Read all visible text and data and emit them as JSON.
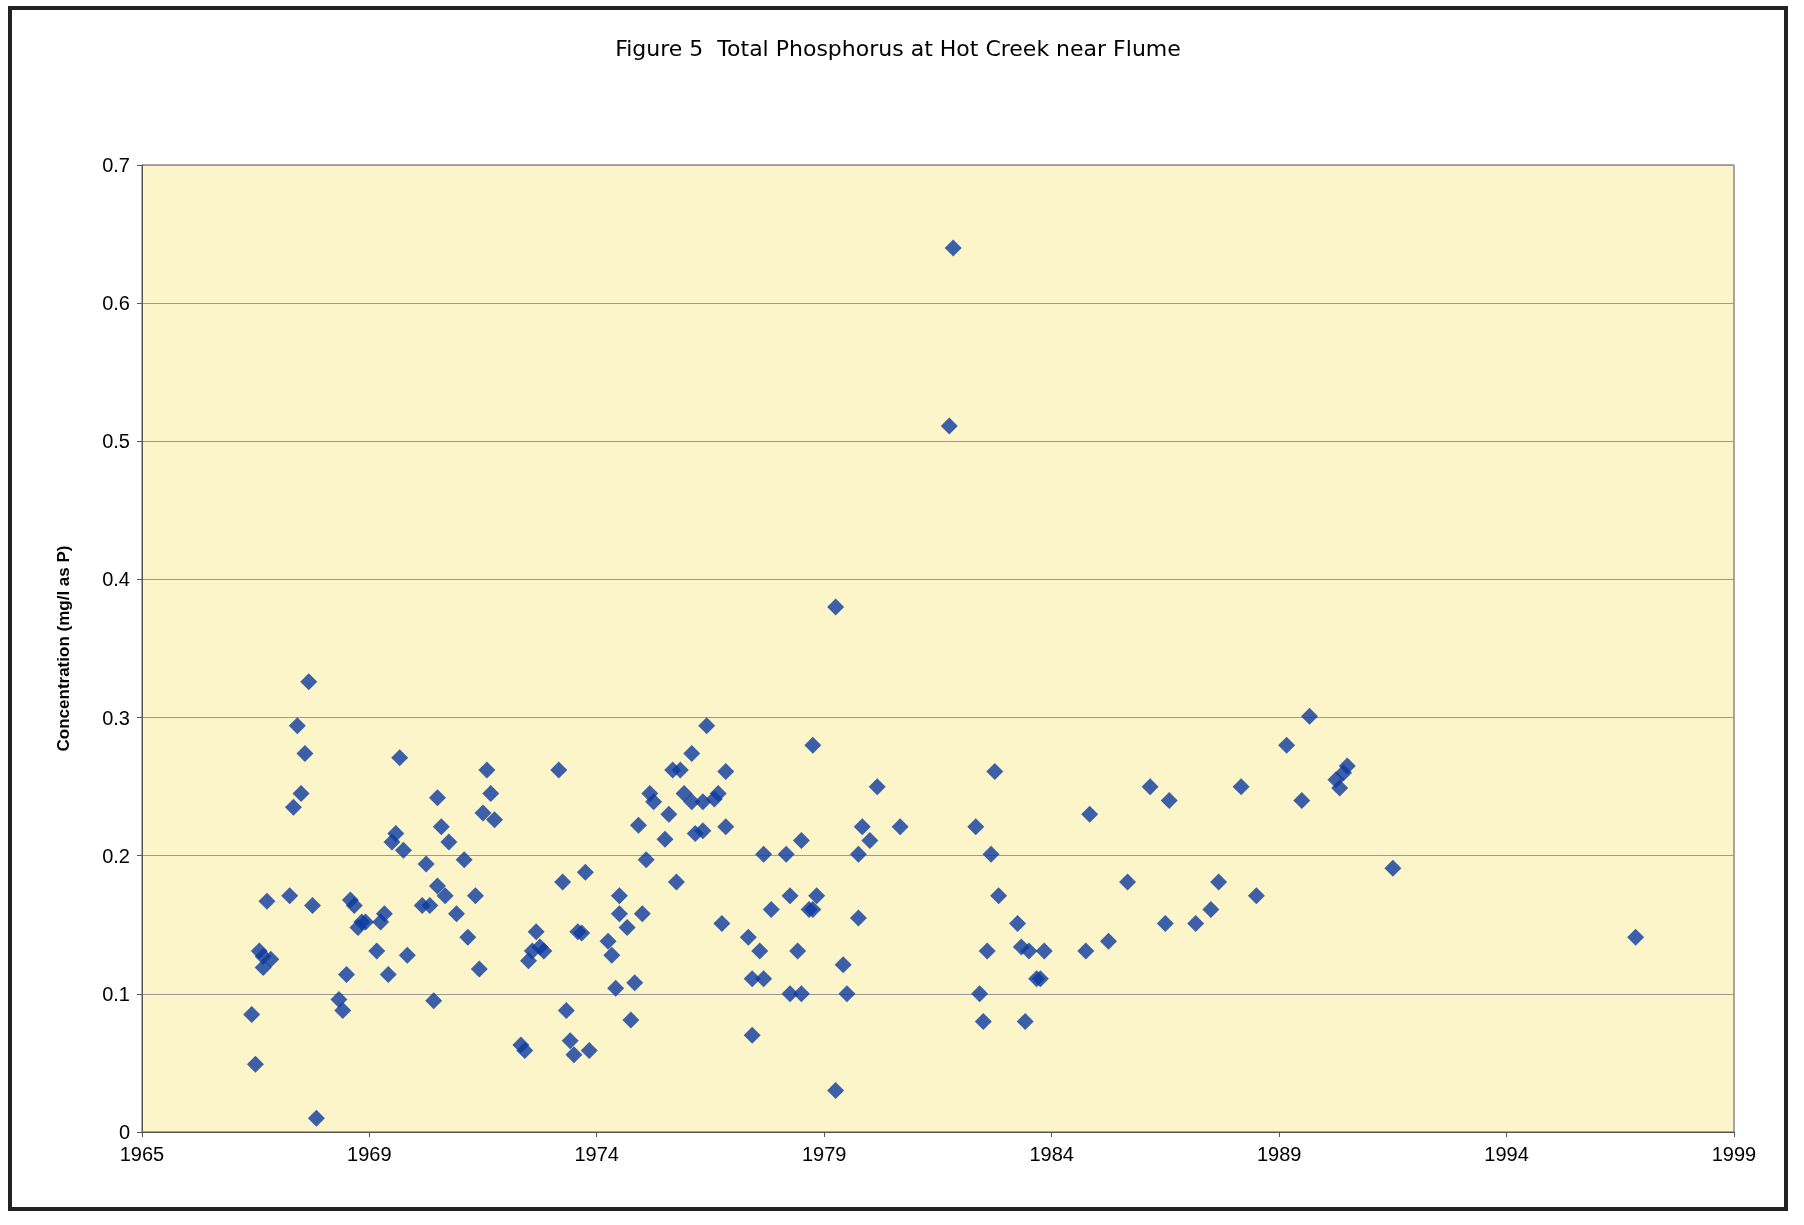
{
  "chart_data": {
    "type": "scatter",
    "title": "Figure 5  Total Phosphorus at Hot Creek near Flume",
    "ylabel": "Concentration (mg/l as P)",
    "x": [
      "1967-06",
      "1967-07",
      "1967-08",
      "1967-09",
      "1967-09",
      "1967-11",
      "1967-10",
      "1968-04",
      "1968-05",
      "1968-06",
      "1968-07",
      "1968-08",
      "1968-09",
      "1968-10",
      "1968-11",
      "1969-05",
      "1969-06",
      "1969-07",
      "1969-08",
      "1969-09",
      "1969-10",
      "1969-11",
      "1969-12",
      "1970-03",
      "1970-04",
      "1970-05",
      "1970-06",
      "1970-07",
      "1970-08",
      "1970-09",
      "1970-10",
      "1970-11",
      "1971-03",
      "1971-04",
      "1971-05",
      "1971-06",
      "1971-07",
      "1971-07",
      "1971-08",
      "1971-09",
      "1971-10",
      "1971-12",
      "1972-02",
      "1972-03",
      "1972-05",
      "1972-06",
      "1972-07",
      "1972-08",
      "1972-09",
      "1972-10",
      "1973-05",
      "1973-06",
      "1973-07",
      "1973-08",
      "1973-09",
      "1973-10",
      "1973-11",
      "1974-03",
      "1974-04",
      "1974-05",
      "1974-06",
      "1974-07",
      "1974-08",
      "1974-09",
      "1974-10",
      "1974-11",
      "1975-04",
      "1975-05",
      "1975-06",
      "1975-07",
      "1975-07",
      "1975-09",
      "1975-10",
      "1975-11",
      "1975-12",
      "1976-01",
      "1976-02",
      "1976-03",
      "1976-04",
      "1976-07",
      "1976-08",
      "1976-09",
      "1976-10",
      "1976-11",
      "1976-12",
      "1977-02",
      "1977-02",
      "1977-03",
      "1977-05",
      "1977-05",
      "1977-06",
      "1977-08",
      "1977-09",
      "1977-10",
      "1977-11",
      "1977-11",
      "1978-05",
      "1978-06",
      "1978-06",
      "1978-08",
      "1978-09",
      "1978-09",
      "1978-11",
      "1979-03",
      "1979-04",
      "1979-04",
      "1979-06",
      "1979-07",
      "1979-07",
      "1979-09",
      "1979-10",
      "1979-10",
      "1979-11",
      "1980-04",
      "1980-04",
      "1980-06",
      "1980-07",
      "1980-10",
      "1980-10",
      "1980-11",
      "1981-01",
      "1981-03",
      "1981-09",
      "1982-10",
      "1982-11",
      "1983-05",
      "1983-06",
      "1983-07",
      "1983-08",
      "1983-09",
      "1983-10",
      "1983-11",
      "1984-04",
      "1984-05",
      "1984-06",
      "1984-07",
      "1984-09",
      "1984-10",
      "1984-11",
      "1985-10",
      "1985-11",
      "1986-04",
      "1986-09",
      "1987-03",
      "1987-07",
      "1987-08",
      "1988-03",
      "1988-07",
      "1988-09",
      "1989-03",
      "1989-07",
      "1990-03",
      "1990-07",
      "1990-09",
      "1991-04",
      "1991-05",
      "1991-06",
      "1991-07",
      "1992-07",
      "1997-11"
    ],
    "series": [
      {
        "color": "#0b3aa0",
        "values": [
          0.085,
          0.049,
          0.131,
          0.119,
          0.127,
          0.125,
          0.167,
          0.171,
          0.235,
          0.294,
          0.245,
          0.274,
          0.326,
          0.164,
          0.01,
          0.096,
          0.088,
          0.114,
          0.168,
          0.164,
          0.148,
          0.152,
          0.152,
          0.131,
          0.152,
          0.158,
          0.114,
          0.21,
          0.216,
          0.271,
          0.204,
          0.128,
          0.164,
          0.194,
          0.164,
          0.095,
          0.178,
          0.242,
          0.221,
          0.171,
          0.21,
          0.158,
          0.197,
          0.141,
          0.171,
          0.118,
          0.231,
          0.262,
          0.245,
          0.226,
          0.063,
          0.059,
          0.124,
          0.131,
          0.145,
          0.134,
          0.131,
          0.262,
          0.181,
          0.088,
          0.066,
          0.056,
          0.145,
          0.144,
          0.188,
          0.059,
          0.138,
          0.128,
          0.104,
          0.171,
          0.158,
          0.148,
          0.081,
          0.108,
          0.222,
          0.158,
          0.197,
          0.245,
          0.239,
          0.212,
          0.23,
          0.262,
          0.181,
          0.262,
          0.245,
          0.274,
          0.239,
          0.216,
          0.239,
          0.218,
          0.294,
          0.241,
          0.245,
          0.151,
          0.261,
          0.221,
          0.141,
          0.07,
          0.111,
          0.131,
          0.111,
          0.201,
          0.161,
          0.201,
          0.171,
          0.1,
          0.131,
          0.1,
          0.211,
          0.161,
          0.161,
          0.28,
          0.171,
          0.38,
          0.03,
          0.121,
          0.1,
          0.155,
          0.201,
          0.221,
          0.211,
          0.25,
          0.221,
          0.511,
          0.64,
          0.221,
          0.1,
          0.08,
          0.131,
          0.201,
          0.261,
          0.171,
          0.151,
          0.134,
          0.08,
          0.131,
          0.111,
          0.111,
          0.131,
          0.131,
          0.23,
          0.138,
          0.181,
          0.25,
          0.151,
          0.24,
          0.151,
          0.161,
          0.181,
          0.25,
          0.171,
          0.28,
          0.24,
          0.301,
          0.255,
          0.249,
          0.26,
          0.265,
          0.191,
          0.141
        ]
      }
    ],
    "xlim": [
      "1965-01-01",
      "1999-12-31"
    ],
    "xticks": [
      {
        "value": "1965-01-01",
        "label": "1965"
      },
      {
        "value": "1969-12-31",
        "label": "1969"
      },
      {
        "value": "1974-12-31",
        "label": "1974"
      },
      {
        "value": "1979-12-31",
        "label": "1979"
      },
      {
        "value": "1984-12-31",
        "label": "1984"
      },
      {
        "value": "1989-12-31",
        "label": "1989"
      },
      {
        "value": "1994-12-31",
        "label": "1994"
      },
      {
        "value": "1999-12-31",
        "label": "1999"
      }
    ],
    "ylim": [
      0,
      0.7
    ],
    "yticks": [
      0,
      0.1,
      0.2,
      0.3,
      0.4,
      0.5,
      0.6,
      0.7
    ],
    "grid": "y",
    "marker": "diamond"
  }
}
